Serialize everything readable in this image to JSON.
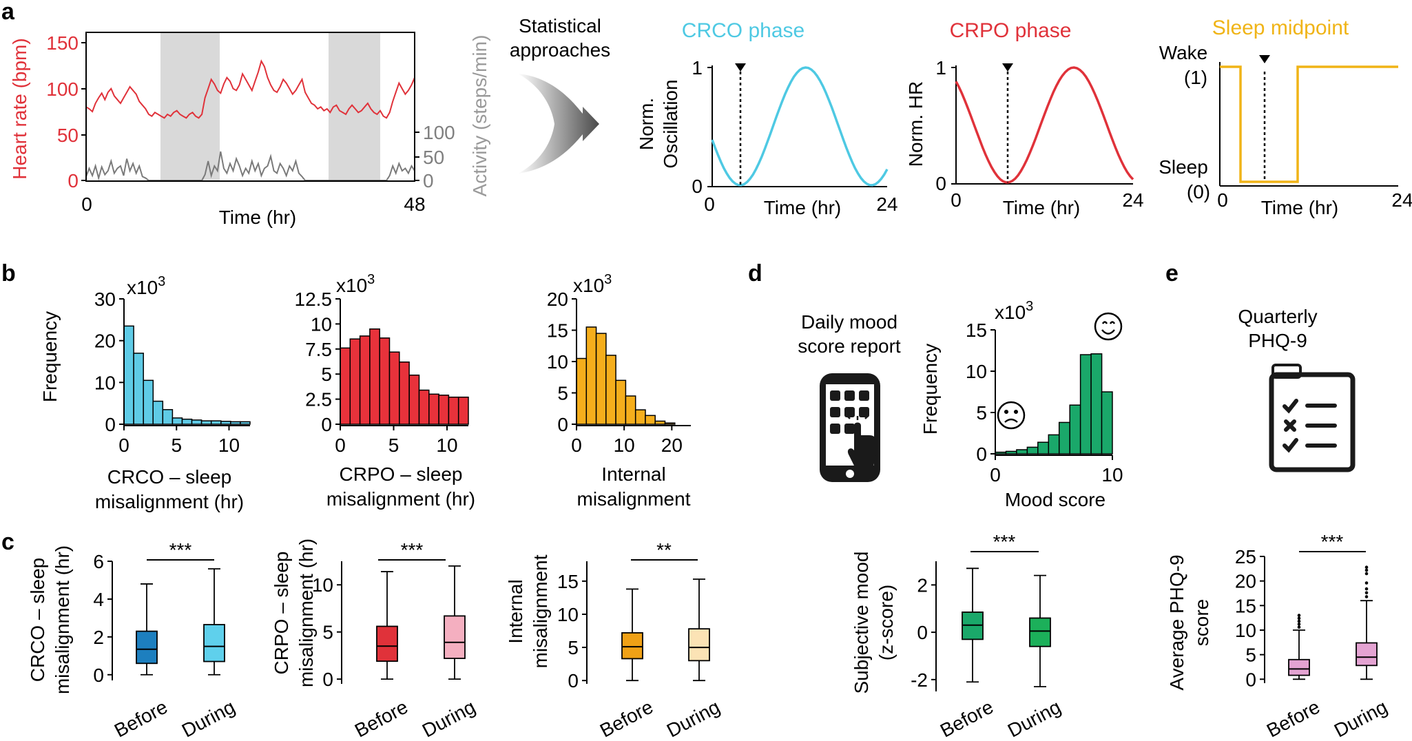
{
  "panel_letters": [
    "a",
    "b",
    "c",
    "d",
    "e"
  ],
  "colors": {
    "crco": "#4ec9e3",
    "crpo": "#e0323a",
    "sleep": "#f0b417",
    "mood": "#1aa86a",
    "phq": "#e4a3d2",
    "hr": "#e0323a",
    "activity": "#808080",
    "shade": "#d9d9d9"
  },
  "panel_a": {
    "arrow_label": "Statistical approaches",
    "timeseries": {
      "ylabel": "Heart rate (bpm)",
      "y2label": "Activity (steps/min)",
      "xlabel": "Time (hr)",
      "yticks": [
        "150",
        "100",
        "50",
        "0"
      ],
      "y2ticks": [
        "100",
        "50",
        "0"
      ],
      "xticks": [
        "0",
        "48"
      ],
      "hr_data": [
        80,
        78,
        75,
        84,
        90,
        95,
        88,
        96,
        100,
        92,
        88,
        84,
        90,
        96,
        102,
        98,
        94,
        86,
        82,
        78,
        72,
        70,
        74,
        72,
        70,
        68,
        72,
        70,
        74,
        76,
        72,
        70,
        68,
        72,
        74,
        70,
        68,
        72,
        90,
        100,
        110,
        105,
        98,
        95,
        105,
        112,
        108,
        100,
        98,
        104,
        116,
        110,
        104,
        98,
        108,
        118,
        130,
        124,
        112,
        104,
        98,
        96,
        102,
        110,
        106,
        100,
        94,
        98,
        104,
        110,
        96,
        90,
        84,
        82,
        78,
        80,
        76,
        78,
        74,
        80,
        82,
        76,
        74,
        72,
        78,
        82,
        78,
        74,
        76,
        80,
        84,
        78,
        74,
        72,
        76,
        70,
        68,
        74,
        86,
        96,
        106,
        100,
        94,
        98,
        104,
        112
      ],
      "activity_data": [
        8,
        25,
        10,
        30,
        5,
        28,
        12,
        20,
        40,
        15,
        25,
        30,
        10,
        45,
        20,
        35,
        15,
        30,
        8,
        5,
        0,
        0,
        0,
        0,
        0,
        0,
        0,
        0,
        0,
        0,
        0,
        0,
        0,
        0,
        0,
        0,
        0,
        0,
        12,
        40,
        10,
        30,
        20,
        60,
        25,
        15,
        35,
        20,
        45,
        30,
        10,
        25,
        15,
        40,
        20,
        35,
        10,
        25,
        30,
        50,
        20,
        15,
        35,
        25,
        10,
        30,
        20,
        40,
        15,
        8,
        0,
        0,
        0,
        0,
        0,
        0,
        0,
        0,
        0,
        0,
        0,
        0,
        0,
        0,
        0,
        0,
        0,
        0,
        0,
        0,
        0,
        0,
        0,
        0,
        0,
        0,
        0,
        10,
        30,
        15,
        35,
        20,
        25,
        15,
        30,
        20
      ]
    },
    "crco": {
      "title": "CRCO phase",
      "ylabel1": "Norm.",
      "ylabel2": "Oscillation",
      "xlabel": "Time (hr)",
      "yticks": [
        "1",
        "0"
      ],
      "xticks": [
        "0",
        "24"
      ]
    },
    "crpo": {
      "title": "CRPO phase",
      "ylabel": "Norm. HR",
      "xlabel": "Time (hr)",
      "yticks": [
        "1",
        "0"
      ],
      "xticks": [
        "0",
        "24"
      ]
    },
    "sleep": {
      "title": "Sleep midpoint",
      "wake": "Wake",
      "wake_val": "(1)",
      "sleep_label": "Sleep",
      "sleep_val": "(0)",
      "xlabel": "Time (hr)",
      "xticks": [
        "0",
        "24"
      ]
    }
  },
  "panel_b": {
    "ylabel": "Frequency",
    "multiplier": "x10",
    "exponent": "3"
  },
  "panel_c": {
    "sig_crco": "***",
    "sig_crpo": "***",
    "sig_internal": "**",
    "categories": [
      "Before",
      "During"
    ]
  },
  "panel_d": {
    "report_line1": "Daily mood",
    "report_line2": "score report",
    "sig": "***",
    "box_ylabel1": "Subjective mood",
    "box_ylabel2": "(z-score)"
  },
  "panel_e": {
    "title1": "Quarterly",
    "title2": "PHQ-9",
    "sig": "***",
    "box_ylabel1": "Average PHQ-9",
    "box_ylabel2": "score"
  },
  "chart_data": [
    {
      "id": "b-crco",
      "type": "bar",
      "title": "",
      "xlabel": "CRCO – sleep misalignment (hr)",
      "ylabel": "Frequency",
      "y_multiplier": "x10^3",
      "bin_start": 0,
      "bin_width": 1,
      "values": [
        23.5,
        17,
        10.5,
        5.5,
        3.5,
        1.5,
        1.2,
        1,
        0.8,
        0.8,
        0.7,
        0.6,
        0.6
      ],
      "ylim": [
        0,
        30
      ],
      "xlim": [
        0,
        12
      ],
      "yticks": [
        "0",
        "10",
        "20",
        "30"
      ],
      "xticks": [
        "0",
        "5",
        "10"
      ],
      "xtick_values": [
        0,
        5,
        10
      ]
    },
    {
      "id": "b-crpo",
      "type": "bar",
      "title": "",
      "xlabel": "CRPO – sleep misalignment (hr)",
      "ylabel": "",
      "y_multiplier": "x10^3",
      "bin_start": 0,
      "bin_width": 1,
      "values": [
        7.6,
        8.5,
        8.8,
        9.5,
        8.6,
        7.2,
        6.2,
        4.9,
        3.4,
        3.0,
        2.9,
        2.7,
        2.7
      ],
      "ylim": [
        0,
        12.5
      ],
      "xlim": [
        0,
        12
      ],
      "yticks": [
        "0",
        "2.5",
        "5",
        "7.5",
        "10",
        "12.5"
      ],
      "xticks": [
        "0",
        "5",
        "10"
      ],
      "xtick_values": [
        0,
        5,
        10
      ]
    },
    {
      "id": "b-internal",
      "type": "bar",
      "title": "",
      "xlabel": "Internal misalignment",
      "ylabel": "",
      "y_multiplier": "x10^3",
      "bin_start": 0,
      "bin_width": 2,
      "values": [
        10.5,
        15.5,
        14.5,
        11,
        7,
        4.5,
        2.3,
        1.4,
        0.5,
        0.2
      ],
      "ylim": [
        0,
        20
      ],
      "xlim": [
        0,
        24
      ],
      "yticks": [
        "0",
        "5",
        "10",
        "15",
        "20"
      ],
      "xticks": [
        "0",
        "10",
        "20"
      ],
      "xtick_values": [
        0,
        10,
        20
      ]
    },
    {
      "id": "d-mood-hist",
      "type": "bar",
      "title": "",
      "xlabel": "Mood score",
      "ylabel": "Frequency",
      "y_multiplier": "x10^3",
      "bin_start": 0,
      "bin_width": 1,
      "values": [
        0.2,
        0.3,
        0.5,
        0.8,
        1.4,
        2.3,
        3.8,
        5.9,
        12,
        12.1,
        7.5
      ],
      "ylim": [
        0,
        15
      ],
      "xlim": [
        0,
        10
      ],
      "yticks": [
        "0",
        "5",
        "10",
        "15"
      ],
      "xticks": [
        "0",
        "10"
      ],
      "xtick_values": [
        0,
        10
      ]
    },
    {
      "id": "c-crco",
      "type": "box",
      "title": "",
      "ylabel": "CRCO – sleep misalignment (hr)",
      "categories": [
        "Before",
        "During"
      ],
      "boxes": [
        {
          "min": 0,
          "q1": 0.6,
          "median": 1.35,
          "q3": 2.3,
          "max": 4.8,
          "color": "#1d7fbf"
        },
        {
          "min": 0,
          "q1": 0.7,
          "median": 1.5,
          "q3": 2.65,
          "max": 5.6,
          "color": "#5fd0ec"
        }
      ],
      "ylim": [
        -0.3,
        6
      ],
      "yticks": [
        "0",
        "2",
        "4",
        "6"
      ],
      "ytick_values": [
        0,
        2,
        4,
        6
      ]
    },
    {
      "id": "c-crpo",
      "type": "box",
      "title": "",
      "ylabel": "CRPO – sleep misalignment (hr)",
      "categories": [
        "Before",
        "During"
      ],
      "boxes": [
        {
          "min": 0,
          "q1": 1.9,
          "median": 3.5,
          "q3": 5.6,
          "max": 11.4,
          "color": "#e0323a"
        },
        {
          "min": 0,
          "q1": 2.2,
          "median": 3.9,
          "q3": 6.7,
          "max": 12.0,
          "color": "#f4afc0"
        }
      ],
      "ylim": [
        -0.5,
        12.5
      ],
      "yticks": [
        "0",
        "5",
        "10"
      ],
      "ytick_values": [
        0,
        5,
        10
      ]
    },
    {
      "id": "c-internal",
      "type": "box",
      "title": "",
      "ylabel": "Internal misalignment",
      "categories": [
        "Before",
        "During"
      ],
      "boxes": [
        {
          "min": 0,
          "q1": 3.3,
          "median": 5.1,
          "q3": 7.2,
          "max": 13.8,
          "color": "#f0a116"
        },
        {
          "min": 0,
          "q1": 3.0,
          "median": 5.0,
          "q3": 7.8,
          "max": 15.3,
          "color": "#fbe3b5"
        }
      ],
      "ylim": [
        -0.5,
        18
      ],
      "yticks": [
        "0",
        "5",
        "10",
        "15"
      ],
      "ytick_values": [
        0,
        5,
        10,
        15
      ]
    },
    {
      "id": "d-mood-box",
      "type": "box",
      "title": "",
      "ylabel": "Subjective mood (z-score)",
      "categories": [
        "Before",
        "During"
      ],
      "boxes": [
        {
          "min": -2.1,
          "q1": -0.3,
          "median": 0.3,
          "q3": 0.85,
          "max": 2.7,
          "color": "#1aa86a"
        },
        {
          "min": -2.3,
          "q1": -0.6,
          "median": 0.05,
          "q3": 0.6,
          "max": 2.4,
          "color": "#1cb05a"
        }
      ],
      "ylim": [
        -2.5,
        3
      ],
      "yticks": [
        "2",
        "0",
        "-2"
      ],
      "ytick_values": [
        2,
        0,
        -2
      ]
    },
    {
      "id": "e-phq-box",
      "type": "box",
      "title": "",
      "ylabel": "Average PHQ-9 score",
      "categories": [
        "Before",
        "During"
      ],
      "boxes": [
        {
          "min": 0,
          "q1": 0.8,
          "median": 2.1,
          "q3": 4.0,
          "max": 10,
          "color": "#e4a3d2",
          "outliers": [
            10.6,
            11.2,
            11.8,
            12.4,
            13.0
          ]
        },
        {
          "min": 0,
          "q1": 2.8,
          "median": 4.5,
          "q3": 7.4,
          "max": 16,
          "color": "#e4a3d2",
          "outliers": [
            16.8,
            17.6,
            18.4,
            19.6,
            21.5,
            22.2,
            22.8
          ]
        }
      ],
      "ylim": [
        -0.8,
        25
      ],
      "yticks": [
        "0",
        "5",
        "10",
        "15",
        "20",
        "25"
      ],
      "ytick_values": [
        0,
        5,
        10,
        15,
        20,
        25
      ]
    }
  ]
}
